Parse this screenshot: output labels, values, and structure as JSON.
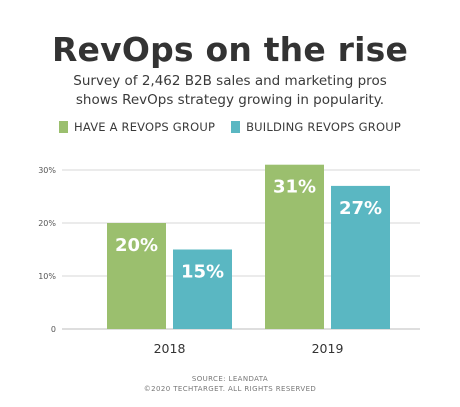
{
  "title": "RevOps on the rise",
  "subtitle_lines": [
    "Survey of 2,462 B2B sales and marketing pros",
    "shows RevOps strategy growing in popularity."
  ],
  "source": "SOURCE: LEANDATA",
  "copyright": "©2020 TECHTARGET. ALL RIGHTS RESERVED",
  "colors": {
    "have": "#9bbf6e",
    "building": "#5ab7c2",
    "grid": "#d7d7d7",
    "axis_text": "#555555"
  },
  "chart_data": {
    "type": "bar",
    "categories": [
      "2018",
      "2019"
    ],
    "series": [
      {
        "name": "HAVE A REVOPS GROUP",
        "values": [
          20,
          31
        ],
        "labels": [
          "20%",
          "31%"
        ]
      },
      {
        "name": "BUILDING REVOPS GROUP",
        "values": [
          15,
          27
        ],
        "labels": [
          "15%",
          "27%"
        ]
      }
    ],
    "ylim": [
      0,
      30
    ],
    "yticks": [
      0,
      10,
      20,
      30
    ],
    "ytick_labels": [
      "0",
      "10%",
      "20%",
      "30%"
    ],
    "grid": true,
    "legend_position": "top"
  }
}
